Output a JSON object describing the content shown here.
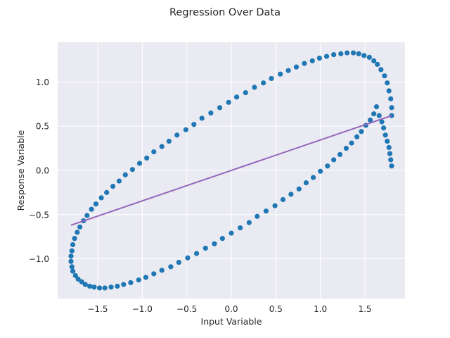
{
  "chart_data": {
    "type": "scatter",
    "title": "Regression Over Data",
    "xlabel": "Input Variable",
    "ylabel": "Response Variable",
    "xlim": [
      -1.95,
      1.95
    ],
    "ylim": [
      -1.45,
      1.45
    ],
    "xticks": [
      -1.5,
      -1.0,
      -0.5,
      0.0,
      0.5,
      1.0,
      1.5
    ],
    "xtick_labels": [
      "−1.5",
      "−1.0",
      "−0.5",
      "0.0",
      "0.5",
      "1.0",
      "1.5"
    ],
    "yticks": [
      -1.0,
      -0.5,
      0.0,
      0.5,
      1.0
    ],
    "ytick_labels": [
      "−1.0",
      "−0.5",
      "0.0",
      "0.5",
      "1.0"
    ],
    "grid": true,
    "background": "#eaeaf2",
    "series": [
      {
        "kind": "scatter",
        "color": "#1f77b4",
        "x": [
          1.8,
          1.8,
          1.79,
          1.77,
          1.75,
          1.72,
          1.68,
          1.64,
          1.6,
          1.55,
          1.49,
          1.43,
          1.37,
          1.3,
          1.23,
          1.15,
          1.07,
          0.99,
          0.91,
          0.82,
          0.73,
          0.64,
          0.55,
          0.45,
          0.36,
          0.26,
          0.16,
          0.06,
          -0.03,
          -0.13,
          -0.23,
          -0.33,
          -0.42,
          -0.51,
          -0.61,
          -0.7,
          -0.78,
          -0.87,
          -0.95,
          -1.03,
          -1.11,
          -1.19,
          -1.26,
          -1.33,
          -1.4,
          -1.46,
          -1.52,
          -1.57,
          -1.62,
          -1.66,
          -1.7,
          -1.73,
          -1.76,
          -1.78,
          -1.79,
          -1.8,
          -1.8,
          -1.79,
          -1.78,
          -1.75,
          -1.72,
          -1.68,
          -1.64,
          -1.59,
          -1.54,
          -1.48,
          -1.42,
          -1.35,
          -1.28,
          -1.21,
          -1.13,
          -1.04,
          -0.96,
          -0.87,
          -0.78,
          -0.68,
          -0.59,
          -0.49,
          -0.39,
          -0.29,
          -0.19,
          -0.1,
          0.0,
          0.1,
          0.2,
          0.29,
          0.39,
          0.49,
          0.58,
          0.67,
          0.76,
          0.84,
          0.92,
          1.0,
          1.08,
          1.15,
          1.22,
          1.29,
          1.35,
          1.41,
          1.46,
          1.51,
          1.56,
          1.6,
          1.63,
          1.66,
          1.69,
          1.71,
          1.73,
          1.75,
          1.77,
          1.78,
          1.79,
          1.8
        ],
        "y": [
          0.62,
          0.71,
          0.81,
          0.9,
          0.99,
          1.07,
          1.14,
          1.2,
          1.24,
          1.28,
          1.3,
          1.32,
          1.33,
          1.33,
          1.32,
          1.31,
          1.29,
          1.27,
          1.24,
          1.21,
          1.17,
          1.13,
          1.09,
          1.04,
          0.99,
          0.94,
          0.88,
          0.83,
          0.77,
          0.71,
          0.65,
          0.59,
          0.52,
          0.46,
          0.4,
          0.33,
          0.27,
          0.21,
          0.14,
          0.08,
          0.01,
          -0.05,
          -0.12,
          -0.18,
          -0.25,
          -0.31,
          -0.38,
          -0.44,
          -0.51,
          -0.57,
          -0.64,
          -0.7,
          -0.77,
          -0.84,
          -0.91,
          -0.97,
          -1.03,
          -1.09,
          -1.14,
          -1.19,
          -1.23,
          -1.26,
          -1.29,
          -1.31,
          -1.32,
          -1.33,
          -1.33,
          -1.32,
          -1.31,
          -1.29,
          -1.27,
          -1.24,
          -1.21,
          -1.17,
          -1.13,
          -1.09,
          -1.04,
          -0.99,
          -0.94,
          -0.88,
          -0.83,
          -0.77,
          -0.71,
          -0.65,
          -0.59,
          -0.52,
          -0.46,
          -0.4,
          -0.33,
          -0.27,
          -0.21,
          -0.14,
          -0.08,
          -0.01,
          0.05,
          0.12,
          0.18,
          0.25,
          0.31,
          0.38,
          0.44,
          0.51,
          0.57,
          0.64,
          0.72,
          0.62,
          0.55,
          0.48,
          0.4,
          0.33,
          0.26,
          0.19,
          0.12,
          0.05
        ]
      },
      {
        "kind": "line",
        "color": "#9467bd",
        "x": [
          -1.8,
          1.8
        ],
        "y": [
          -0.62,
          0.62
        ]
      }
    ]
  }
}
